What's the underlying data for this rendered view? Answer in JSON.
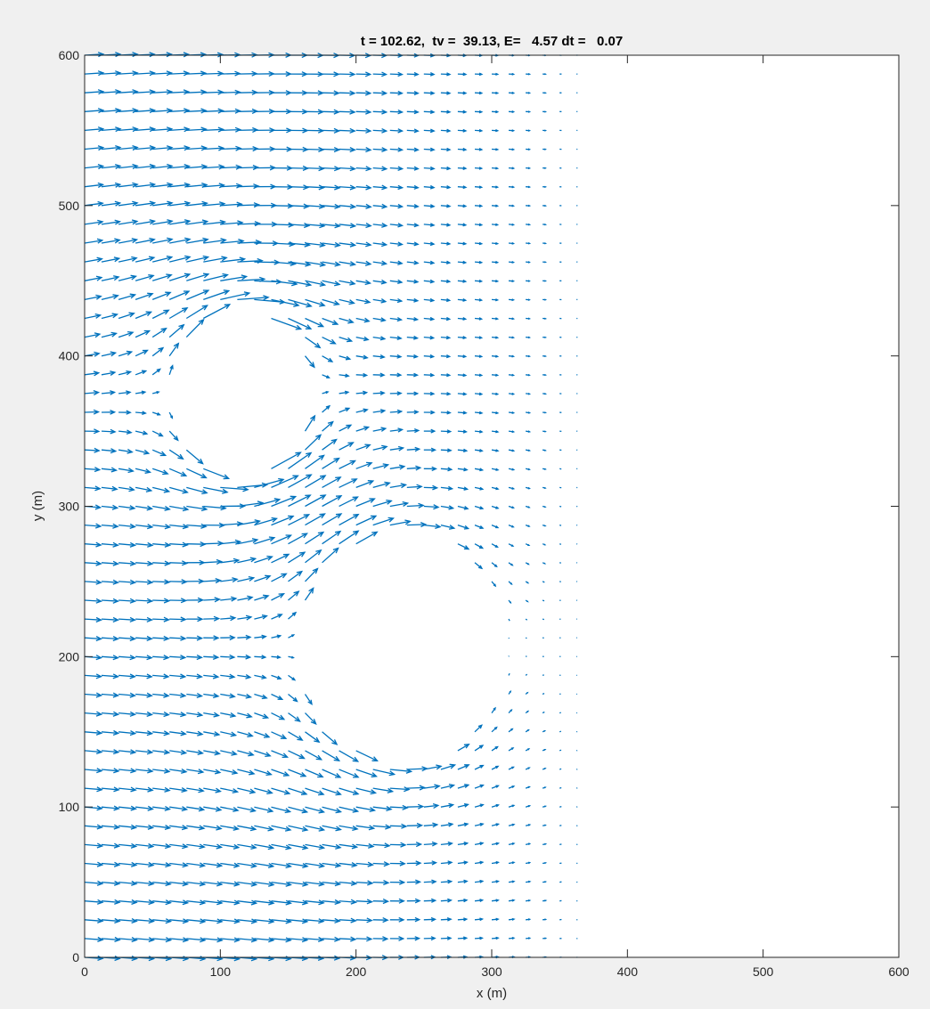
{
  "chart_data": {
    "type": "quiver",
    "title": "t = 102.62,  tv =  39.13, E=   4.57 dt =   0.07",
    "xlabel": "x (m)",
    "ylabel": "y (m)",
    "xlim": [
      0,
      600
    ],
    "ylim": [
      0,
      600
    ],
    "xticks": [
      0,
      100,
      200,
      300,
      400,
      500,
      600
    ],
    "yticks": [
      0,
      100,
      200,
      300,
      400,
      500,
      600
    ],
    "xtick_labels": [
      "0",
      "100",
      "200",
      "300",
      "400",
      "500",
      "600"
    ],
    "ytick_labels": [
      "0",
      "100",
      "200",
      "300",
      "400",
      "500",
      "600"
    ],
    "grid": false,
    "arrow_color": "#0072BD",
    "background_color": "#f0f0f0",
    "axes_color": "#ffffff",
    "grid_x_range": [
      0,
      375
    ],
    "grid_y_range": [
      0,
      600
    ],
    "grid_spacing": 12.5,
    "inflow_direction": "+x",
    "obstacles": [
      {
        "shape": "circle",
        "center": [
          115,
          375
        ],
        "radius": 52
      },
      {
        "shape": "circle",
        "center": [
          235,
          205
        ],
        "radius": 75
      }
    ]
  }
}
